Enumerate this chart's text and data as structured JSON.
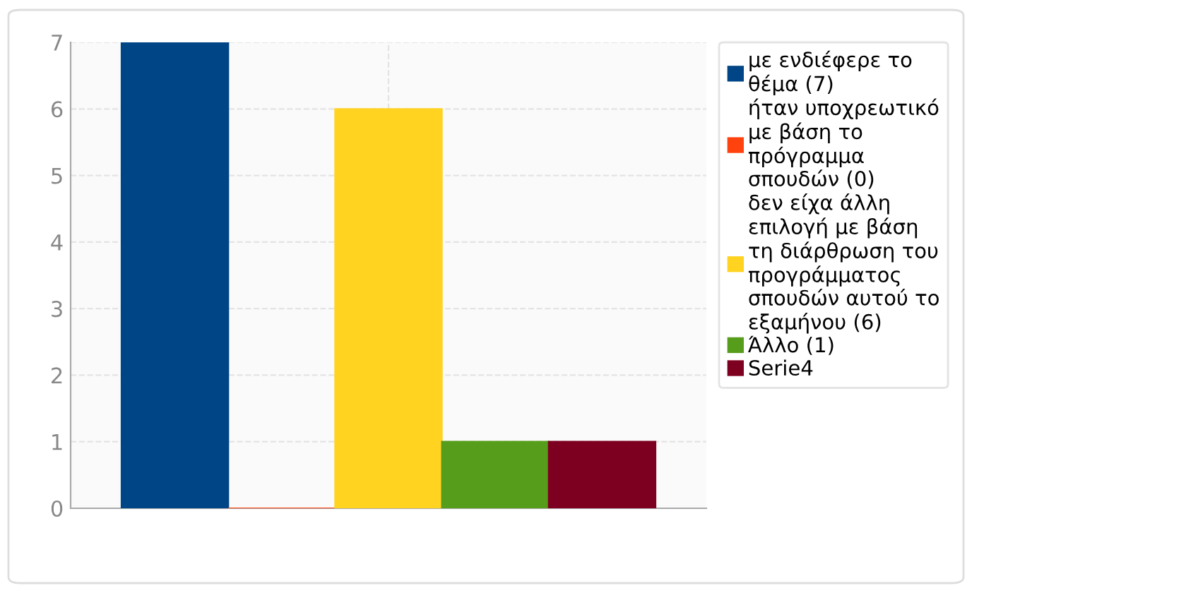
{
  "chart_data": {
    "type": "bar",
    "categories": [
      null
    ],
    "series": [
      {
        "name": "με ενδιέφερε το θέμα (7)",
        "color": "#004586",
        "values": [
          7
        ]
      },
      {
        "name": "ήταν υποχρεωτικό με βάση το πρόγραμμα σπουδών (0)",
        "color": "#ff420e",
        "values": [
          0
        ]
      },
      {
        "name": "δεν είχα άλλη επιλογή με βάση τη διάρθρωση του προγράμματος σπουδών αυτού το εξαμήνου (6)",
        "color": "#ffd320",
        "values": [
          6
        ]
      },
      {
        "name": "Άλλο (1)",
        "color": "#579d1c",
        "values": [
          1
        ]
      },
      {
        "name": "Serie4",
        "color": "#7e0021",
        "values": [
          1
        ]
      }
    ],
    "ylim": [
      0,
      7
    ],
    "yticks": [
      0,
      1,
      2,
      3,
      4,
      5,
      6,
      7
    ],
    "grid": true,
    "legend": "right"
  }
}
